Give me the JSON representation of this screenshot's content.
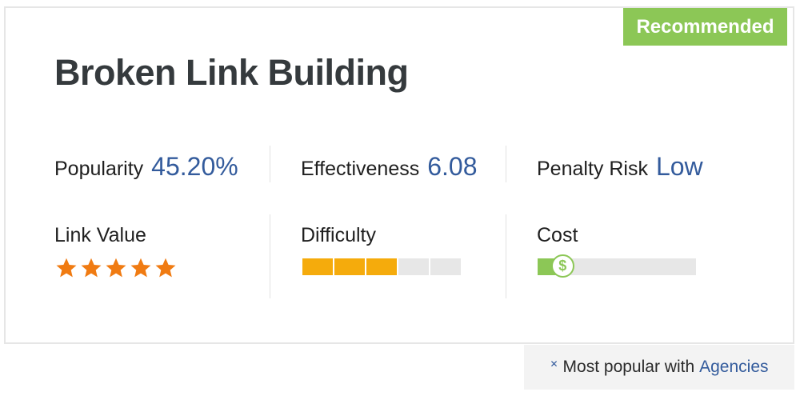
{
  "badge": {
    "label": "Recommended"
  },
  "title": "Broken Link Building",
  "metrics": [
    {
      "label": "Popularity",
      "value": "45.20%"
    },
    {
      "label": "Effectiveness",
      "value": "6.08"
    },
    {
      "label": "Penalty Risk",
      "value": "Low"
    }
  ],
  "link_value": {
    "label": "Link Value",
    "stars": 5,
    "max_stars": 5,
    "icon": "star-icon"
  },
  "difficulty": {
    "label": "Difficulty",
    "level": 3,
    "max_level": 5
  },
  "cost": {
    "label": "Cost",
    "level_fraction": 0.12,
    "icon": "dollar-icon"
  },
  "footer": {
    "prefix": "Most popular with",
    "highlight": "Agencies",
    "icon": "close-icon"
  },
  "colors": {
    "accent_green": "#8cc756",
    "value_blue": "#335b9c",
    "star_orange": "#f07b12",
    "difficulty_orange": "#f5ab0c",
    "track_gray": "#e7e7e7"
  }
}
